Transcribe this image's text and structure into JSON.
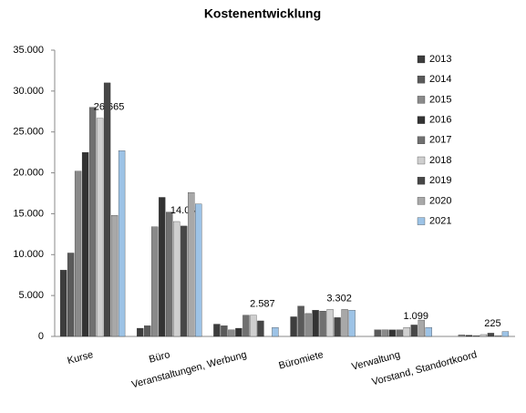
{
  "chart_data": {
    "type": "bar",
    "title": "Kostenentwicklung",
    "categories": [
      "Kurse",
      "Büro",
      "Veranstaltungen, Werbung",
      "Büromiete",
      "Verwaltung",
      "Vorstand, Standortkoord"
    ],
    "series": [
      {
        "name": "2013",
        "color": "#3d3d3d",
        "values": [
          8100,
          1000,
          1500,
          2400,
          0,
          0
        ]
      },
      {
        "name": "2014",
        "color": "#5a5a5a",
        "values": [
          10200,
          1300,
          1300,
          3700,
          800,
          0
        ]
      },
      {
        "name": "2015",
        "color": "#8a8a8a",
        "values": [
          20200,
          13400,
          800,
          2800,
          800,
          200
        ]
      },
      {
        "name": "2016",
        "color": "#333333",
        "values": [
          22500,
          17000,
          1000,
          3200,
          800,
          150
        ]
      },
      {
        "name": "2017",
        "color": "#707070",
        "values": [
          28000,
          15200,
          2600,
          3100,
          800,
          100
        ]
      },
      {
        "name": "2018",
        "color": "#cfcfcf",
        "values": [
          26665,
          14046,
          2587,
          3302,
          1099,
          225
        ],
        "value_labels": [
          "26.665",
          "14.046",
          "2.587",
          "3.302",
          "1.099",
          "225"
        ]
      },
      {
        "name": "2019",
        "color": "#474747",
        "values": [
          31000,
          13500,
          1900,
          2300,
          1400,
          400
        ]
      },
      {
        "name": "2020",
        "color": "#a8a8a8",
        "values": [
          14800,
          17600,
          0,
          3300,
          2000,
          100
        ]
      },
      {
        "name": "2021",
        "color": "#9dc3e6",
        "values": [
          22700,
          16200,
          1100,
          3200,
          1100,
          600
        ]
      }
    ],
    "ylim": [
      0,
      35000
    ],
    "yticks": [
      0,
      {
        "value": 5000,
        "label": "5.000"
      },
      {
        "value": 10000,
        "label": "10.000"
      },
      {
        "value": 15000,
        "label": "15.000"
      },
      {
        "value": 20000,
        "label": "20.000"
      },
      {
        "value": 25000,
        "label": "25.000"
      },
      {
        "value": 30000,
        "label": "30.000"
      },
      {
        "value": 35000,
        "label": "35.000"
      }
    ],
    "legend": "right"
  }
}
